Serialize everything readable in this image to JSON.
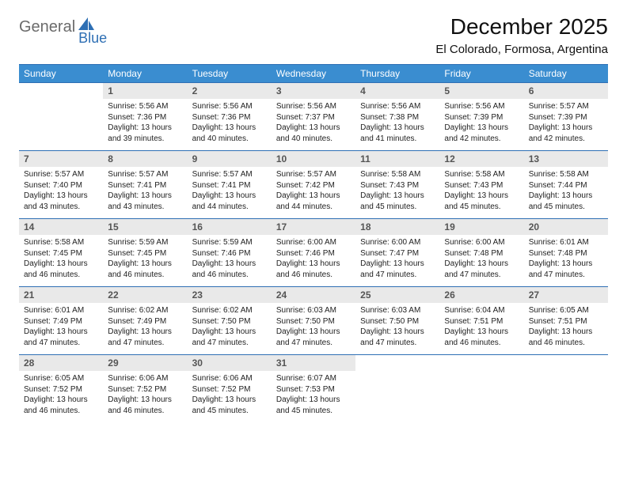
{
  "logo": {
    "word1": "General",
    "word2": "Blue"
  },
  "title": "December 2025",
  "location": "El Colorado, Formosa, Argentina",
  "colors": {
    "header_bg": "#3a8dd0",
    "border": "#2e6fb4",
    "daynum_bg": "#e9e9e9",
    "logo_gray": "#6b6b6b",
    "logo_blue": "#2e6fb4"
  },
  "day_headers": [
    "Sunday",
    "Monday",
    "Tuesday",
    "Wednesday",
    "Thursday",
    "Friday",
    "Saturday"
  ],
  "first_weekday": 1,
  "days": [
    {
      "n": 1,
      "sr": "5:56 AM",
      "ss": "7:36 PM",
      "dl": "13 hours and 39 minutes."
    },
    {
      "n": 2,
      "sr": "5:56 AM",
      "ss": "7:36 PM",
      "dl": "13 hours and 40 minutes."
    },
    {
      "n": 3,
      "sr": "5:56 AM",
      "ss": "7:37 PM",
      "dl": "13 hours and 40 minutes."
    },
    {
      "n": 4,
      "sr": "5:56 AM",
      "ss": "7:38 PM",
      "dl": "13 hours and 41 minutes."
    },
    {
      "n": 5,
      "sr": "5:56 AM",
      "ss": "7:39 PM",
      "dl": "13 hours and 42 minutes."
    },
    {
      "n": 6,
      "sr": "5:57 AM",
      "ss": "7:39 PM",
      "dl": "13 hours and 42 minutes."
    },
    {
      "n": 7,
      "sr": "5:57 AM",
      "ss": "7:40 PM",
      "dl": "13 hours and 43 minutes."
    },
    {
      "n": 8,
      "sr": "5:57 AM",
      "ss": "7:41 PM",
      "dl": "13 hours and 43 minutes."
    },
    {
      "n": 9,
      "sr": "5:57 AM",
      "ss": "7:41 PM",
      "dl": "13 hours and 44 minutes."
    },
    {
      "n": 10,
      "sr": "5:57 AM",
      "ss": "7:42 PM",
      "dl": "13 hours and 44 minutes."
    },
    {
      "n": 11,
      "sr": "5:58 AM",
      "ss": "7:43 PM",
      "dl": "13 hours and 45 minutes."
    },
    {
      "n": 12,
      "sr": "5:58 AM",
      "ss": "7:43 PM",
      "dl": "13 hours and 45 minutes."
    },
    {
      "n": 13,
      "sr": "5:58 AM",
      "ss": "7:44 PM",
      "dl": "13 hours and 45 minutes."
    },
    {
      "n": 14,
      "sr": "5:58 AM",
      "ss": "7:45 PM",
      "dl": "13 hours and 46 minutes."
    },
    {
      "n": 15,
      "sr": "5:59 AM",
      "ss": "7:45 PM",
      "dl": "13 hours and 46 minutes."
    },
    {
      "n": 16,
      "sr": "5:59 AM",
      "ss": "7:46 PM",
      "dl": "13 hours and 46 minutes."
    },
    {
      "n": 17,
      "sr": "6:00 AM",
      "ss": "7:46 PM",
      "dl": "13 hours and 46 minutes."
    },
    {
      "n": 18,
      "sr": "6:00 AM",
      "ss": "7:47 PM",
      "dl": "13 hours and 47 minutes."
    },
    {
      "n": 19,
      "sr": "6:00 AM",
      "ss": "7:48 PM",
      "dl": "13 hours and 47 minutes."
    },
    {
      "n": 20,
      "sr": "6:01 AM",
      "ss": "7:48 PM",
      "dl": "13 hours and 47 minutes."
    },
    {
      "n": 21,
      "sr": "6:01 AM",
      "ss": "7:49 PM",
      "dl": "13 hours and 47 minutes."
    },
    {
      "n": 22,
      "sr": "6:02 AM",
      "ss": "7:49 PM",
      "dl": "13 hours and 47 minutes."
    },
    {
      "n": 23,
      "sr": "6:02 AM",
      "ss": "7:50 PM",
      "dl": "13 hours and 47 minutes."
    },
    {
      "n": 24,
      "sr": "6:03 AM",
      "ss": "7:50 PM",
      "dl": "13 hours and 47 minutes."
    },
    {
      "n": 25,
      "sr": "6:03 AM",
      "ss": "7:50 PM",
      "dl": "13 hours and 47 minutes."
    },
    {
      "n": 26,
      "sr": "6:04 AM",
      "ss": "7:51 PM",
      "dl": "13 hours and 46 minutes."
    },
    {
      "n": 27,
      "sr": "6:05 AM",
      "ss": "7:51 PM",
      "dl": "13 hours and 46 minutes."
    },
    {
      "n": 28,
      "sr": "6:05 AM",
      "ss": "7:52 PM",
      "dl": "13 hours and 46 minutes."
    },
    {
      "n": 29,
      "sr": "6:06 AM",
      "ss": "7:52 PM",
      "dl": "13 hours and 46 minutes."
    },
    {
      "n": 30,
      "sr": "6:06 AM",
      "ss": "7:52 PM",
      "dl": "13 hours and 45 minutes."
    },
    {
      "n": 31,
      "sr": "6:07 AM",
      "ss": "7:53 PM",
      "dl": "13 hours and 45 minutes."
    }
  ],
  "labels": {
    "sunrise": "Sunrise:",
    "sunset": "Sunset:",
    "daylight": "Daylight:"
  }
}
